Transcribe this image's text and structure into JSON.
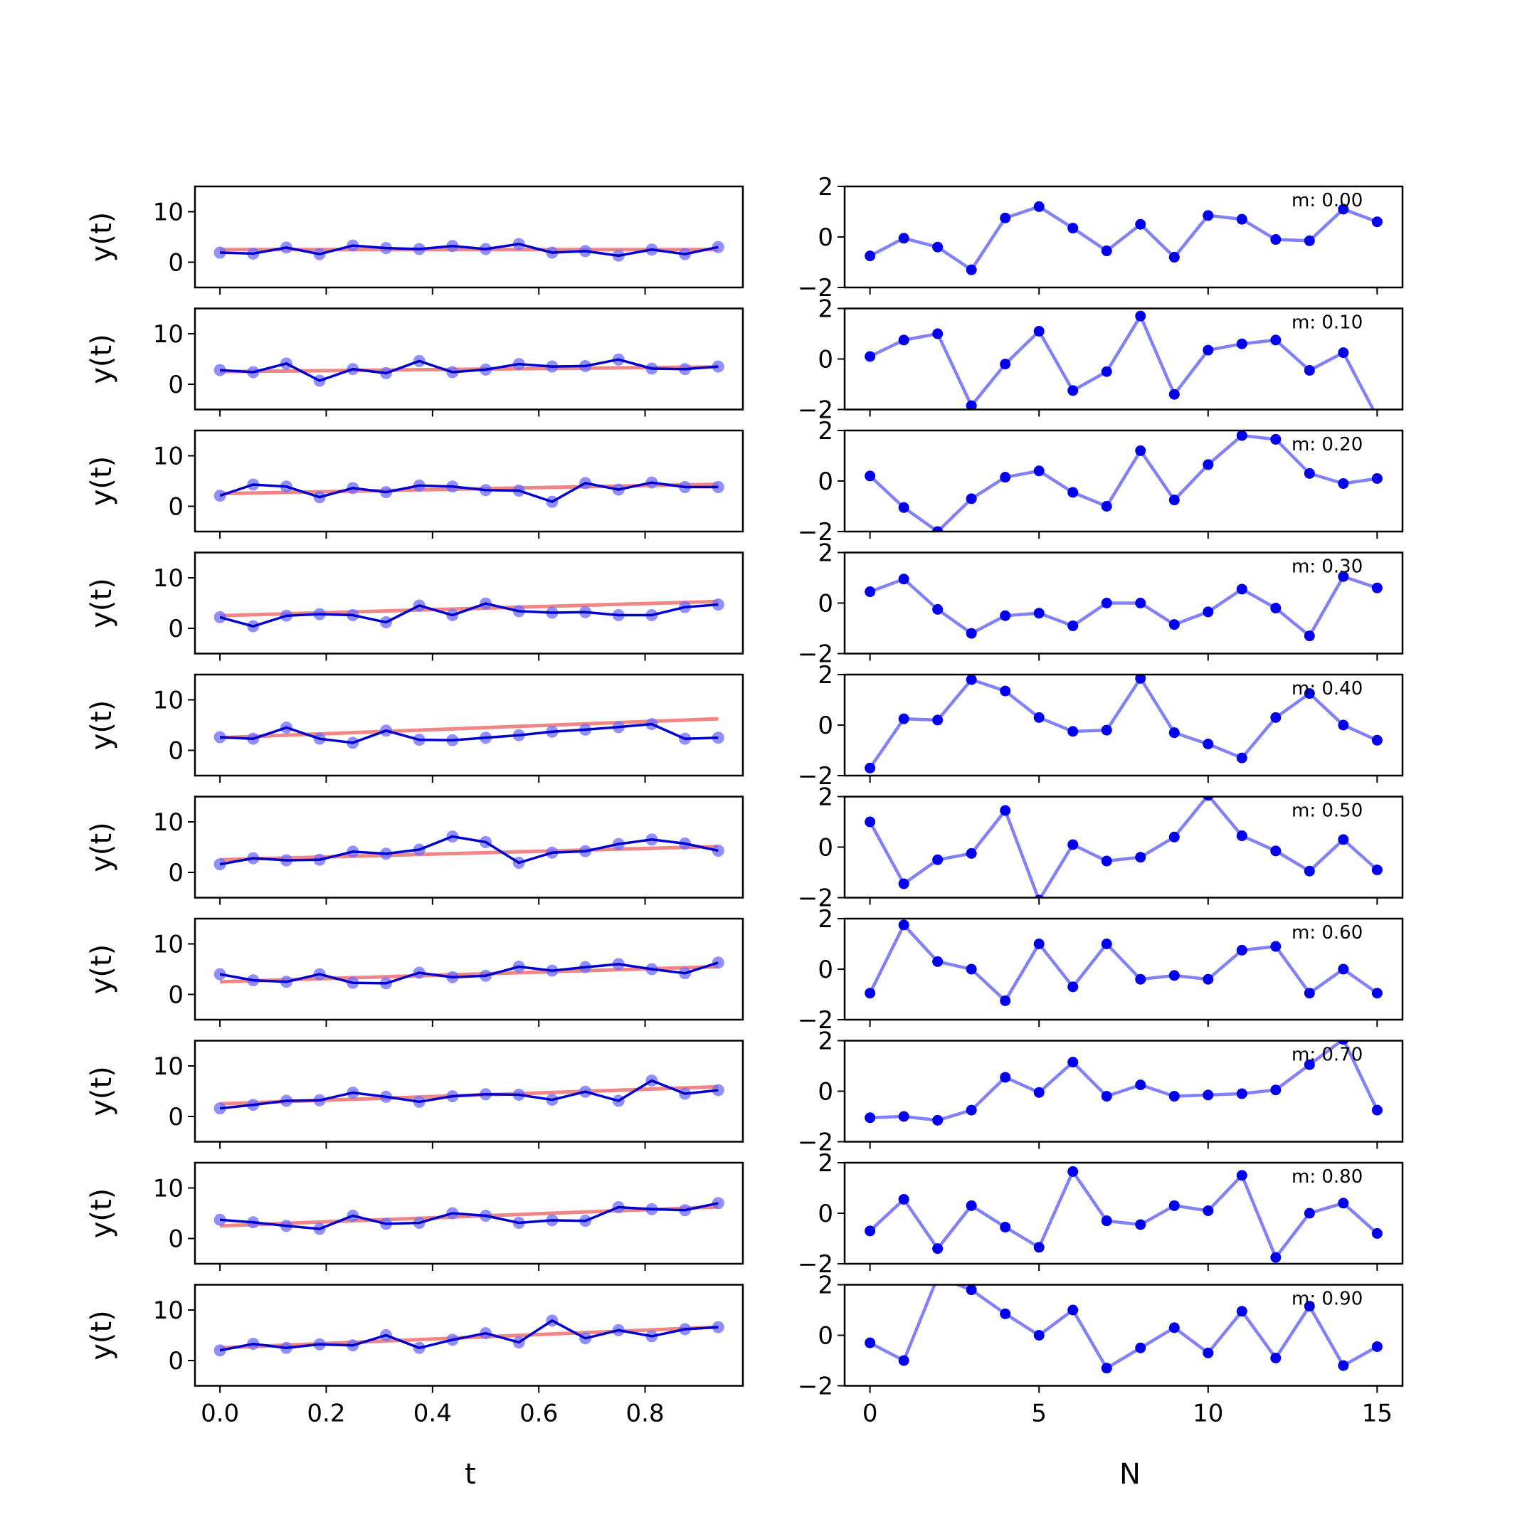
{
  "chart_data": [
    {
      "type": "line",
      "panel": "left",
      "ylabel": "y(t)",
      "ylim": [
        -5,
        15
      ],
      "yticks": [
        0,
        10
      ],
      "xticks": [
        0.0,
        0.2,
        0.4,
        0.6,
        0.8
      ],
      "xticklabels": [
        "0.0",
        "0.2",
        "0.4",
        "0.6",
        "0.8"
      ],
      "xlabel": "t",
      "x": [
        0,
        0.0625,
        0.125,
        0.1875,
        0.25,
        0.3125,
        0.375,
        0.4375,
        0.5,
        0.5625,
        0.625,
        0.6875,
        0.75,
        0.8125,
        0.875,
        0.9375
      ],
      "series": [
        {
          "values": [
            [
              1.9,
              1.7,
              2.9,
              1.6,
              3.3,
              2.8,
              2.6,
              3.2,
              2.6,
              3.6,
              1.9,
              2.2,
              1.3,
              2.5,
              1.6,
              3.0
            ],
            [
              2.8,
              2.4,
              4.1,
              0.7,
              3.0,
              2.2,
              4.6,
              2.4,
              2.9,
              4.0,
              3.5,
              3.6,
              4.9,
              3.1,
              3.0,
              3.5
            ],
            [
              2.1,
              4.3,
              3.9,
              1.8,
              3.6,
              2.8,
              4.1,
              3.9,
              3.2,
              3.1,
              0.9,
              4.6,
              3.3,
              4.7,
              3.8,
              3.8
            ],
            [
              2.2,
              0.4,
              2.5,
              2.8,
              2.6,
              1.2,
              4.5,
              2.6,
              4.9,
              3.4,
              3.1,
              3.2,
              2.6,
              2.6,
              4.2,
              4.7
            ],
            [
              2.6,
              2.3,
              4.5,
              2.3,
              1.5,
              3.9,
              2.1,
              2.0,
              2.5,
              3.0,
              3.7,
              4.1,
              4.6,
              5.2,
              2.3,
              2.5
            ],
            [
              1.6,
              2.8,
              2.4,
              2.5,
              4.1,
              3.7,
              4.5,
              7.1,
              6.0,
              1.9,
              3.9,
              4.2,
              5.6,
              6.5,
              5.7,
              4.3
            ],
            [
              4.0,
              2.8,
              2.5,
              4.0,
              2.3,
              2.2,
              4.3,
              3.4,
              3.7,
              5.5,
              4.7,
              5.4,
              6.0,
              5.0,
              4.2,
              6.3
            ],
            [
              1.6,
              2.3,
              3.1,
              3.2,
              4.7,
              3.9,
              2.9,
              4.0,
              4.4,
              4.3,
              3.3,
              4.9,
              3.1,
              7.1,
              4.5,
              5.2
            ],
            [
              3.7,
              3.2,
              2.5,
              1.9,
              4.5,
              2.9,
              3.1,
              5.0,
              4.5,
              3.1,
              3.6,
              3.5,
              6.2,
              5.8,
              5.6,
              7.0
            ],
            [
              2.0,
              3.3,
              2.5,
              3.2,
              3.0,
              5.0,
              2.5,
              4.1,
              5.4,
              3.6,
              7.9,
              4.4,
              6.0,
              4.8,
              6.2,
              6.6
            ]
          ]
        },
        {
          "intercept": 2.5,
          "slopes": [
            0.0,
            1.0,
            2.0,
            3.0,
            4.0,
            2.8,
            3.2,
            3.6,
            4.0,
            4.4
          ]
        }
      ]
    },
    {
      "type": "line",
      "panel": "right",
      "ylim": [
        -2,
        2
      ],
      "yticks": [
        -2,
        0,
        2
      ],
      "yticklabels": [
        "−2",
        "0",
        "2"
      ],
      "xticks": [
        0,
        5,
        10,
        15
      ],
      "xticklabels": [
        "0",
        "5",
        "10",
        "15"
      ],
      "xlabel": "N",
      "x": [
        0,
        1,
        2,
        3,
        4,
        5,
        6,
        7,
        8,
        9,
        10,
        11,
        12,
        13,
        14,
        15
      ],
      "annotations": [
        "m: 0.00",
        "m: 0.10",
        "m: 0.20",
        "m: 0.30",
        "m: 0.40",
        "m: 0.50",
        "m: 0.60",
        "m: 0.70",
        "m: 0.80",
        "m: 0.90"
      ],
      "series": [
        {
          "values": [
            [
              -0.75,
              -0.05,
              -0.4,
              -1.3,
              0.75,
              1.2,
              0.35,
              -0.55,
              0.5,
              -0.8,
              0.85,
              0.7,
              -0.1,
              -0.15,
              1.1,
              0.6
            ],
            [
              0.1,
              0.75,
              1.0,
              -1.85,
              -0.2,
              1.1,
              -1.25,
              -0.5,
              1.7,
              -1.4,
              0.35,
              0.6,
              0.75,
              -0.45,
              0.25,
              -2.3
            ],
            [
              0.2,
              -1.05,
              -2.0,
              -0.7,
              0.15,
              0.4,
              -0.45,
              -1.0,
              1.2,
              -0.75,
              0.65,
              1.8,
              1.65,
              0.3,
              -0.1,
              0.1
            ],
            [
              0.45,
              0.95,
              -0.25,
              -1.2,
              -0.5,
              -0.4,
              -0.9,
              0.0,
              0.0,
              -0.85,
              -0.35,
              0.55,
              -0.2,
              -1.3,
              1.05,
              0.6
            ],
            [
              -1.7,
              0.25,
              0.2,
              1.8,
              1.35,
              0.3,
              -0.25,
              -0.2,
              1.85,
              -0.3,
              -0.75,
              -1.3,
              0.3,
              1.25,
              0.0,
              -0.6
            ],
            [
              1.0,
              -1.45,
              -0.5,
              -0.25,
              1.45,
              -2.1,
              0.1,
              -0.55,
              -0.4,
              0.4,
              2.05,
              0.45,
              -0.15,
              -0.95,
              0.3,
              -0.9
            ],
            [
              -0.95,
              1.75,
              0.3,
              0.0,
              -1.25,
              1.0,
              -0.7,
              1.0,
              -0.4,
              -0.25,
              -0.4,
              0.75,
              0.9,
              -0.95,
              0.0,
              -0.95
            ],
            [
              -1.05,
              -1.0,
              -1.15,
              -0.75,
              0.55,
              -0.05,
              1.15,
              -0.2,
              0.25,
              -0.2,
              -0.15,
              -0.1,
              0.05,
              1.05,
              2.05,
              -0.75
            ],
            [
              -0.7,
              0.55,
              -1.4,
              0.3,
              -0.55,
              -1.35,
              1.65,
              -0.3,
              -0.45,
              0.3,
              0.1,
              1.5,
              -1.75,
              0.0,
              0.4,
              -0.8
            ],
            [
              -0.3,
              -1.0,
              2.3,
              1.8,
              0.85,
              0.0,
              1.0,
              -1.3,
              -0.5,
              0.3,
              -0.7,
              0.95,
              -0.9,
              1.15,
              -1.2,
              -0.45
            ]
          ]
        }
      ]
    }
  ],
  "colors": {
    "trend_line": "#f08080",
    "data_line": "#0000cd",
    "data_marker": "#6a6aff",
    "residual": "#7b7bf5",
    "residual_marker": "#0000ee"
  }
}
